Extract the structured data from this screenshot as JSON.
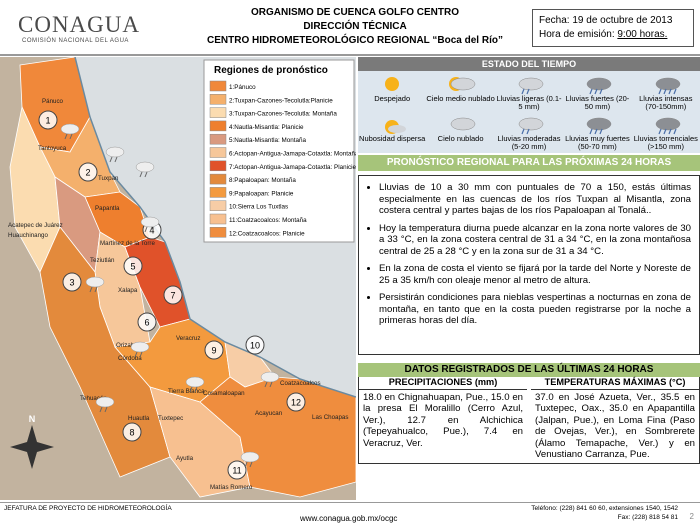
{
  "header": {
    "logo": "CONAGUA",
    "logo_subtitle": "COMISIÓN NACIONAL DEL AGUA",
    "title_lines": [
      "ORGANISMO DE CUENCA GOLFO CENTRO",
      "DIRECCIÓN TÉCNICA",
      "CENTRO HIDROMETEOROLÓGICO REGIONAL “Boca del Río”"
    ],
    "date": "Fecha: 19 de octubre de 2013",
    "issue_time_label": "Hora de emisión:",
    "issue_time": "9:00 horas."
  },
  "map": {
    "legend_title": "Regiones de pronóstico",
    "regions": [
      {
        "label": "1:Pánuco",
        "color": "#f0883a"
      },
      {
        "label": "2:Tuxpan-Cazones-Tecolutla:Planicie",
        "color": "#f4b06c"
      },
      {
        "label": "3:Tuxpan-Cazones-Tecolutla: Montaña",
        "color": "#fbdcb0"
      },
      {
        "label": "4:Nautla-Misantla: Planicie",
        "color": "#ee7f2e"
      },
      {
        "label": "5:Nautla-Misantla: Montaña",
        "color": "#d99a80"
      },
      {
        "label": "6:Actopan-Antigua-Jamapa-Cotaxtla: Montaña",
        "color": "#f6c79a"
      },
      {
        "label": "7:Actopan-Antigua-Jamapa-Cotaxtla: Planicie",
        "color": "#e0522a"
      },
      {
        "label": "8:Papaloapan: Montaña",
        "color": "#e38a3c"
      },
      {
        "label": "9:Papaloapan: Planicie",
        "color": "#f39a3e"
      },
      {
        "label": "10:Sierra Los Tuxtlas",
        "color": "#f7cda6"
      },
      {
        "label": "11:Coatzacoalcos: Montaña",
        "color": "#f7c090"
      },
      {
        "label": "12:Coatzacoalcos: Planicie",
        "color": "#ef8d3e"
      }
    ],
    "region_numbers": [
      "1",
      "2",
      "3",
      "4",
      "5",
      "6",
      "7",
      "8",
      "9",
      "10",
      "11",
      "12"
    ],
    "places": [
      "Pánuco",
      "Tantoyuca",
      "Tuxpan",
      "Papantla",
      "Acatepec de Juárez",
      "Huauchinango",
      "Martínez de la Torre",
      "Teziutlán",
      "Xalapa",
      "Veracruz",
      "Orizaba",
      "Córdoba",
      "Tehuacán",
      "Tierra Blanca",
      "Cosamaloapan",
      "Tuxtepec",
      "Huautla",
      "Coatzacoalcos",
      "Acayucan",
      "Las Choapas",
      "Ayutla",
      "Matías Romero"
    ],
    "compass": "N"
  },
  "weather_states": {
    "title": "ESTADO DEL TIEMPO",
    "items": [
      "Despejado",
      "Cielo medio nublado",
      "Lluvias ligeras (0.1-5 mm)",
      "Lluvias fuertes (20-50 mm)",
      "Lluvias intensas (70-150mm)",
      "Nubosidad dispersa",
      "Cielo nublado",
      "Lluvias moderadas (5-20 mm)",
      "Lluvias muy fuertes (50-70 mm)",
      "Lluvias torrenciales (>150 mm)"
    ]
  },
  "forecast": {
    "title": "PRONÓSTICO REGIONAL PARA LAS PRÓXIMAS 24 HORAS",
    "bullets": [
      "Lluvias de 10 a 30 mm con puntuales de 70 a 150, estás últimas especialmente en las cuencas de los ríos Tuxpan al Misantla, zona costera central y partes bajas de los ríos Papaloapan al Tonalá..",
      "Hoy la temperatura diurna puede alcanzar en la zona norte valores de 30 a 33 °C, en la zona costera central de 31 a 34 °C, en la zona montañosa central de 25 a 28 °C y en la zona sur de 31 a 34 °C.",
      "En la zona de costa el viento se fijará por la tarde del Norte y Noreste de 25 a 35 km/h con oleaje menor al metro de altura.",
      "Persistirán condiciones para nieblas vespertinas a nocturnas en zona de montaña, en tanto que en la costa pueden registrarse por la noche a primeras horas del día."
    ]
  },
  "records": {
    "title": "DATOS REGISTRADOS DE LAS ÚLTIMAS 24 HORAS",
    "precipitation_header": "PRECIPITACIONES (mm)",
    "precipitation": "18.0 en Chignahuapan, Pue., 15.0 en la presa El Moralillo (Cerro Azul, Ver.), 12.7 en Alchichica (Tepeyahualco, Pue.), 7.4 en Veracruz, Ver.",
    "temperature_header": "TEMPERATURAS MÁXIMAS (°C)",
    "temperature": "37.0 en José Azueta, Ver., 35.5 en Tuxtepec, Oax., 35.0 en Apapantilla (Jalpan, Pue.), en Loma Fina (Paso de Ovejas, Ver.), en Sombrerete (Álamo Temapache, Ver.) y en Venustiano Carranza, Pue."
  },
  "footer": {
    "left": "JEFATURA DE PROYECTO DE HIDROMETEOROLOGÍA",
    "url": "www.conagua.gob.mx/ocgc",
    "phone": "Teléfono: (228) 841 60 60, extensiones 1540, 1542",
    "fax": "Fax: (228) 818 54 81",
    "page": "2"
  }
}
